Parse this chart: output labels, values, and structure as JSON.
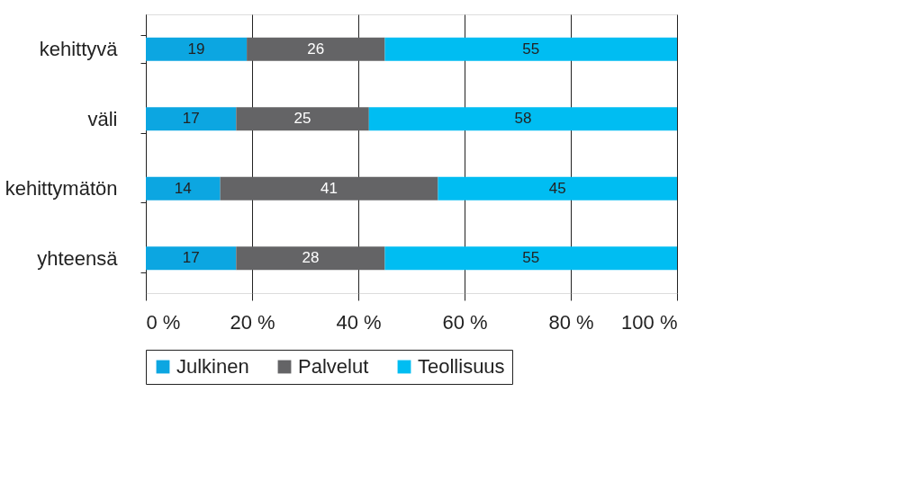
{
  "chart_data": {
    "type": "bar",
    "orientation": "horizontal",
    "stacked": true,
    "data_labels": true,
    "grid": "x",
    "legend": "bottom",
    "categories": [
      "kehittyvä",
      "väli",
      "kehittymätön",
      "yhteensä"
    ],
    "series": [
      {
        "name": "Julkinen",
        "color": "#0ca6e1",
        "values": [
          19,
          17,
          14,
          17
        ]
      },
      {
        "name": "Palvelut",
        "color": "#646466",
        "values": [
          26,
          25,
          41,
          28
        ]
      },
      {
        "name": "Teollisuus",
        "color": "#00bdf2",
        "values": [
          55,
          58,
          45,
          55
        ]
      }
    ],
    "xlim": [
      0,
      100
    ],
    "xticks": [
      {
        "value": 0,
        "label": "0 %"
      },
      {
        "value": 20,
        "label": "20 %"
      },
      {
        "value": 40,
        "label": "40 %"
      },
      {
        "value": 60,
        "label": "60 %"
      },
      {
        "value": 80,
        "label": "80 %"
      },
      {
        "value": 100,
        "label": "100 %"
      }
    ]
  }
}
